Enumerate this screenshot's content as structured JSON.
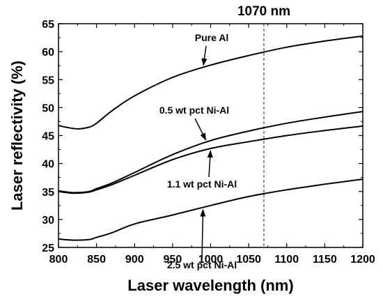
{
  "chart_data": {
    "type": "line",
    "title": "",
    "xlabel": "Laser wavelength (nm)",
    "ylabel": "Laser reflectivity (%)",
    "xlim": [
      800,
      1200
    ],
    "ylim": [
      25,
      65
    ],
    "xticks": [
      800,
      850,
      900,
      950,
      1000,
      1050,
      1100,
      1150,
      1200
    ],
    "yticks": [
      25,
      30,
      35,
      40,
      45,
      50,
      55,
      60,
      65
    ],
    "grid": false,
    "legend": "none",
    "reference_line": {
      "x": 1070,
      "label": "1070 nm",
      "style": "dashed"
    },
    "series": [
      {
        "name": "Pure Al",
        "x": [
          800,
          810,
          825,
          840,
          850,
          870,
          900,
          950,
          1000,
          1050,
          1100,
          1150,
          1200
        ],
        "y": [
          46.8,
          46.5,
          46.2,
          46.5,
          47.2,
          49.4,
          52.1,
          55.4,
          57.6,
          59.3,
          60.8,
          61.9,
          62.8
        ]
      },
      {
        "name": "0.5 wt pct Ni-Al",
        "x": [
          800,
          820,
          840,
          850,
          870,
          900,
          950,
          1000,
          1050,
          1100,
          1150,
          1200
        ],
        "y": [
          35.1,
          34.8,
          35.0,
          35.5,
          36.5,
          38.4,
          41.6,
          44.1,
          45.8,
          47.2,
          48.3,
          49.3
        ]
      },
      {
        "name": "1.1 wt pct Ni-Al",
        "x": [
          800,
          820,
          840,
          850,
          870,
          900,
          950,
          1000,
          1050,
          1100,
          1150,
          1200
        ],
        "y": [
          35.0,
          34.7,
          34.9,
          35.3,
          36.2,
          37.9,
          40.7,
          42.7,
          43.9,
          45.0,
          45.9,
          46.7
        ]
      },
      {
        "name": "2.5 wt pct Ni-Al",
        "x": [
          800,
          820,
          840,
          850,
          870,
          900,
          950,
          1000,
          1050,
          1100,
          1150,
          1200
        ],
        "y": [
          26.5,
          26.3,
          26.4,
          26.8,
          27.6,
          29.2,
          30.8,
          32.5,
          34.1,
          35.3,
          36.3,
          37.2
        ]
      }
    ],
    "annotations": [
      {
        "text": "Pure Al",
        "series": 0,
        "arrow_to_x": 990
      },
      {
        "text": "0.5 wt pct Ni-Al",
        "series": 1,
        "arrow_to_x": 995
      },
      {
        "text": "1.1 wt pct Ni-Al",
        "series": 2,
        "arrow_to_x": 1000
      },
      {
        "text": "2.5 wt pct Ni-Al",
        "series": 3,
        "arrow_to_x": 990
      }
    ]
  }
}
